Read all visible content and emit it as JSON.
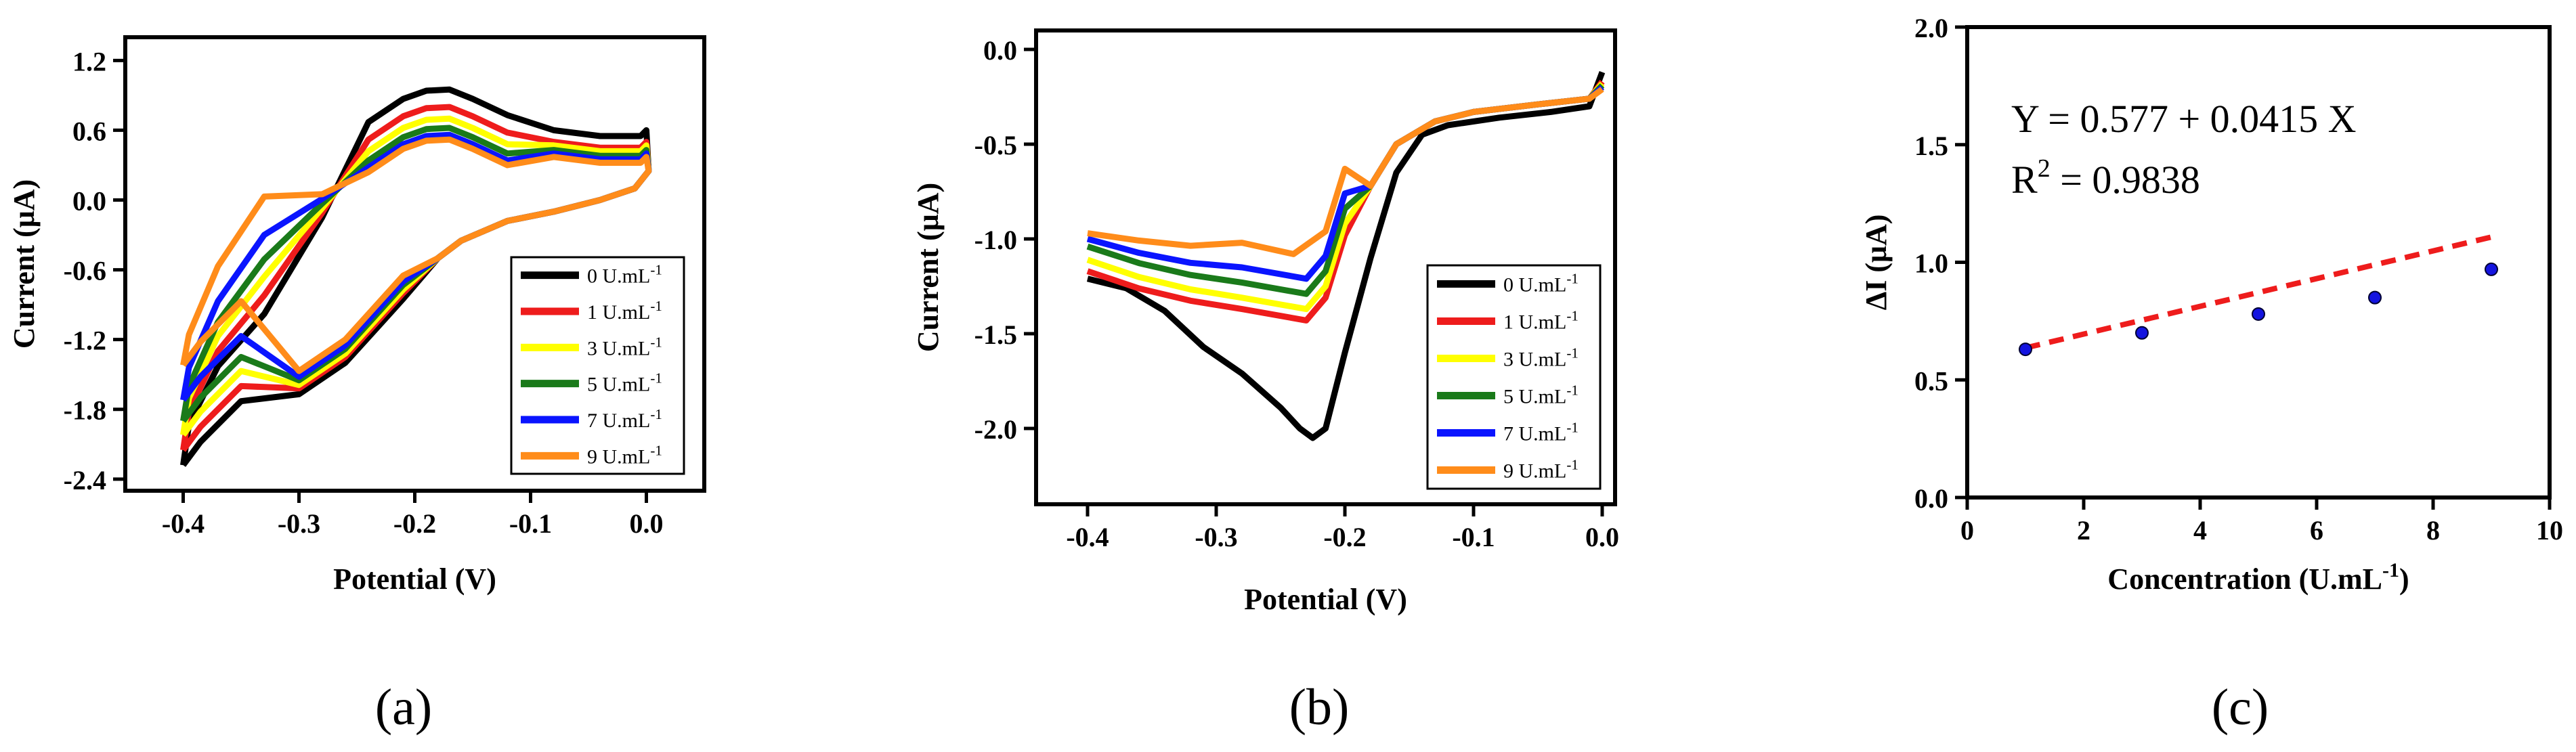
{
  "series_colors": [
    "#000000",
    "#ee1c1c",
    "#ffff00",
    "#1a7a1a",
    "#0a14ff",
    "#ff8c1a"
  ],
  "chart_data": [
    {
      "panel": "(a)",
      "type": "line",
      "xlabel": "Potential (V)",
      "ylabel": "Current (μA)",
      "xlim": [
        -0.45,
        0.05
      ],
      "ylim": [
        -2.5,
        1.4
      ],
      "xticks": [
        -0.4,
        -0.3,
        -0.2,
        -0.1,
        0.0
      ],
      "xtick_labels": [
        "-0.4",
        "-0.3",
        "-0.2",
        "-0.1",
        "0.0"
      ],
      "yticks": [
        -2.4,
        -1.8,
        -1.2,
        -0.6,
        0.0,
        0.6,
        1.2
      ],
      "ytick_labels": [
        "-2.4",
        "-1.8",
        "-1.2",
        "-0.6",
        "0.0",
        "0.6",
        "1.2"
      ],
      "legend_position": "bottom-right",
      "series": [
        {
          "name": "0 U.mL",
          "ox_peak": 0.95,
          "upper_end": 0.55,
          "red_wave": -0.95,
          "start": -2.28
        },
        {
          "name": "1 U.mL",
          "ox_peak": 0.8,
          "upper_end": 0.45,
          "red_wave": -0.9,
          "start": -2.15
        },
        {
          "name": "3 U.mL",
          "ox_peak": 0.7,
          "upper_end": 0.42,
          "red_wave": -0.87,
          "start": -2.02
        },
        {
          "name": "5 U.mL",
          "ox_peak": 0.62,
          "upper_end": 0.38,
          "red_wave": -0.83,
          "start": -1.9
        },
        {
          "name": "7 U.mL",
          "ox_peak": 0.56,
          "upper_end": 0.35,
          "red_wave": -0.8,
          "start": -1.72
        },
        {
          "name": "9 U.mL",
          "ox_peak": 0.52,
          "upper_end": 0.32,
          "red_wave": -0.75,
          "start": -1.42
        }
      ],
      "legend_unit_sup": "-1"
    },
    {
      "panel": "(b)",
      "type": "line",
      "xlabel": "Potential (V)",
      "ylabel": "Current (μA)",
      "xlim": [
        -0.44,
        0.01
      ],
      "ylim": [
        -2.4,
        0.1
      ],
      "xticks": [
        -0.4,
        -0.3,
        -0.2,
        -0.1,
        0.0
      ],
      "xtick_labels": [
        "-0.4",
        "-0.3",
        "-0.2",
        "-0.1",
        "0.0"
      ],
      "yticks": [
        -2.0,
        -1.5,
        -1.0,
        -0.5,
        0.0
      ],
      "ytick_labels": [
        "-2.0",
        "-1.5",
        "-1.0",
        "-0.5",
        "0.0"
      ],
      "legend_position": "bottom-right",
      "series": [
        {
          "name": "0 U.mL",
          "start": -1.21,
          "peak": -2.05,
          "peak_x": -0.22,
          "end": -0.12
        },
        {
          "name": "1 U.mL",
          "start": -1.17,
          "peak": -1.43,
          "peak_x": -0.23,
          "end": -0.17
        },
        {
          "name": "3 U.mL",
          "start": -1.11,
          "peak": -1.37,
          "peak_x": -0.23,
          "end": -0.18
        },
        {
          "name": "5 U.mL",
          "start": -1.04,
          "peak": -1.29,
          "peak_x": -0.23,
          "end": -0.19
        },
        {
          "name": "7 U.mL",
          "start": -1.0,
          "peak": -1.21,
          "peak_x": -0.23,
          "end": -0.2
        },
        {
          "name": "9 U.mL",
          "start": -0.97,
          "peak": -1.08,
          "peak_x": -0.24,
          "end": -0.21
        }
      ],
      "legend_unit_sup": "-1"
    },
    {
      "panel": "(c)",
      "type": "scatter",
      "xlabel": "Concentration (U.mL",
      "xlabel_sup": "-1",
      "xlabel_suffix": ")",
      "ylabel": "ΔI (μA)",
      "xlim": [
        0,
        10
      ],
      "ylim": [
        0.0,
        2.0
      ],
      "xticks": [
        0,
        2,
        4,
        6,
        8,
        10
      ],
      "xtick_labels": [
        "0",
        "2",
        "4",
        "6",
        "8",
        "10"
      ],
      "yticks": [
        0.0,
        0.5,
        1.0,
        1.5,
        2.0
      ],
      "ytick_labels": [
        "0.0",
        "0.5",
        "1.0",
        "1.5",
        "2.0"
      ],
      "x": [
        1,
        3,
        5,
        7,
        9
      ],
      "y": [
        0.63,
        0.7,
        0.78,
        0.85,
        0.97
      ],
      "fit": {
        "intercept": 0.577,
        "slope": 0.0415,
        "x_range": [
          1,
          9
        ]
      },
      "equation": "Y = 0.577 + 0.0415 X",
      "r2_label": "R",
      "r2_sup": "2",
      "r2_value": " = 0.9838",
      "marker_color": "#1414e0",
      "fit_color": "#ee1c1c"
    }
  ]
}
